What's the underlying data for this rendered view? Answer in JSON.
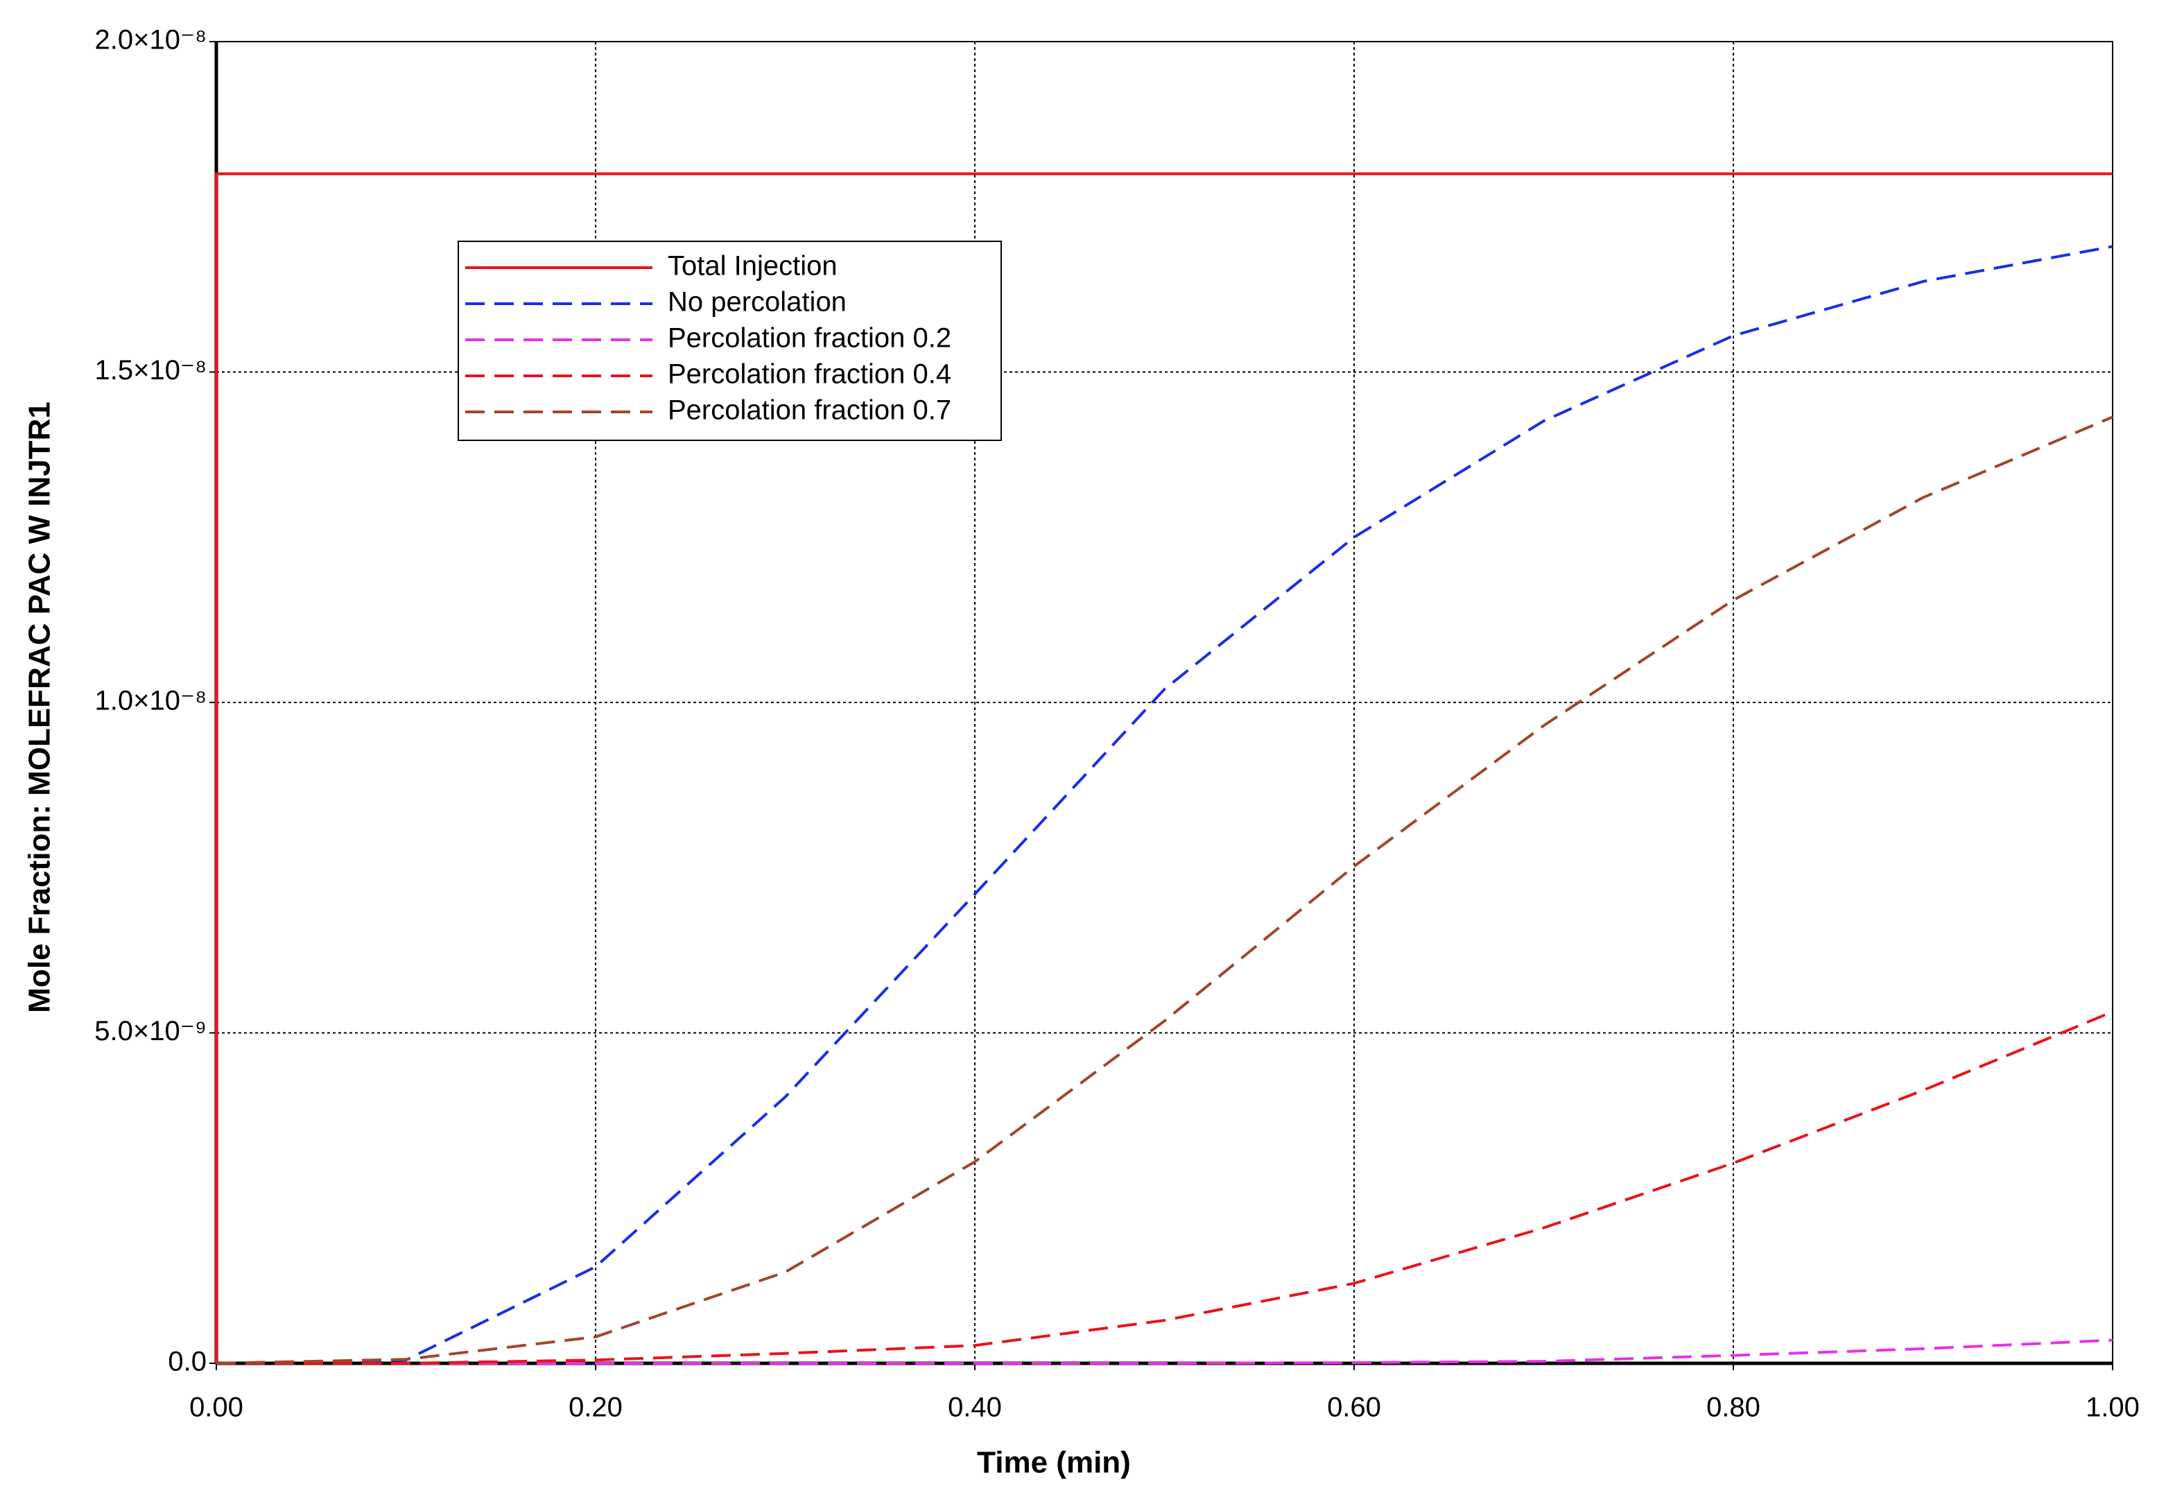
{
  "chart_data": {
    "type": "line",
    "xlabel": "Time (min)",
    "ylabel": "Mole Fraction: MOLEFRAC PAC W INJTR1",
    "xlim": [
      0,
      1
    ],
    "ylim": [
      0,
      2e-08
    ],
    "xticks": [
      {
        "value": 0,
        "label": "0.00"
      },
      {
        "value": 0.2,
        "label": "0.20"
      },
      {
        "value": 0.4,
        "label": "0.40"
      },
      {
        "value": 0.6,
        "label": "0.60"
      },
      {
        "value": 0.8,
        "label": "0.80"
      },
      {
        "value": 1,
        "label": "1.00"
      }
    ],
    "yticks": [
      {
        "value": 0,
        "label": "0.0"
      },
      {
        "value": 5e-09,
        "label": "5.0×10⁻⁹"
      },
      {
        "value": 1e-08,
        "label": "1.0×10⁻⁸"
      },
      {
        "value": 1.5e-08,
        "label": "1.5×10⁻⁸"
      },
      {
        "value": 2e-08,
        "label": "2.0×10⁻⁸"
      }
    ],
    "grid": true,
    "series": [
      {
        "name": "Total Injection",
        "color": "#e8141c",
        "dash": "solid",
        "x": [
          0,
          0,
          1
        ],
        "values": [
          0,
          1.8e-08,
          1.8e-08
        ]
      },
      {
        "name": "No percolation",
        "color": "#1a2ee6",
        "dash": "dashed",
        "x": [
          0,
          0.1,
          0.2,
          0.3,
          0.4,
          0.5,
          0.6,
          0.7,
          0.8,
          0.9,
          1.0
        ],
        "values": [
          0,
          5e-11,
          1.46e-09,
          4.03e-09,
          7.1e-09,
          1.02e-08,
          1.25e-08,
          1.426e-08,
          1.555e-08,
          1.637e-08,
          1.69e-08
        ]
      },
      {
        "name": "Percolation fraction 0.2",
        "color": "#e632e6",
        "dash": "dashed",
        "x": [
          0,
          0.1,
          0.2,
          0.3,
          0.4,
          0.5,
          0.6,
          0.7,
          0.8,
          0.9,
          1.0
        ],
        "values": [
          0,
          0,
          0,
          0,
          0,
          0,
          1e-11,
          3e-11,
          1.2e-10,
          2.2e-10,
          3.5e-10
        ]
      },
      {
        "name": "Percolation fraction 0.4",
        "color": "#e8141c",
        "dash": "dashed",
        "x": [
          0,
          0.1,
          0.2,
          0.3,
          0.4,
          0.5,
          0.6,
          0.7,
          0.8,
          0.9,
          1.0
        ],
        "values": [
          0,
          0,
          5e-11,
          1.5e-10,
          2.7e-10,
          6.5e-10,
          1.21e-09,
          2.05e-09,
          3.03e-09,
          4.13e-09,
          5.32e-09
        ]
      },
      {
        "name": "Percolation fraction 0.7",
        "color": "#a0462d",
        "dash": "dashed",
        "x": [
          0,
          0.1,
          0.2,
          0.3,
          0.4,
          0.5,
          0.6,
          0.7,
          0.8,
          0.9,
          1.0
        ],
        "values": [
          0,
          6e-11,
          4e-10,
          1.38e-09,
          3.05e-09,
          5.18e-09,
          7.52e-09,
          9.65e-09,
          1.155e-08,
          1.31e-08,
          1.432e-08
        ]
      }
    ]
  }
}
